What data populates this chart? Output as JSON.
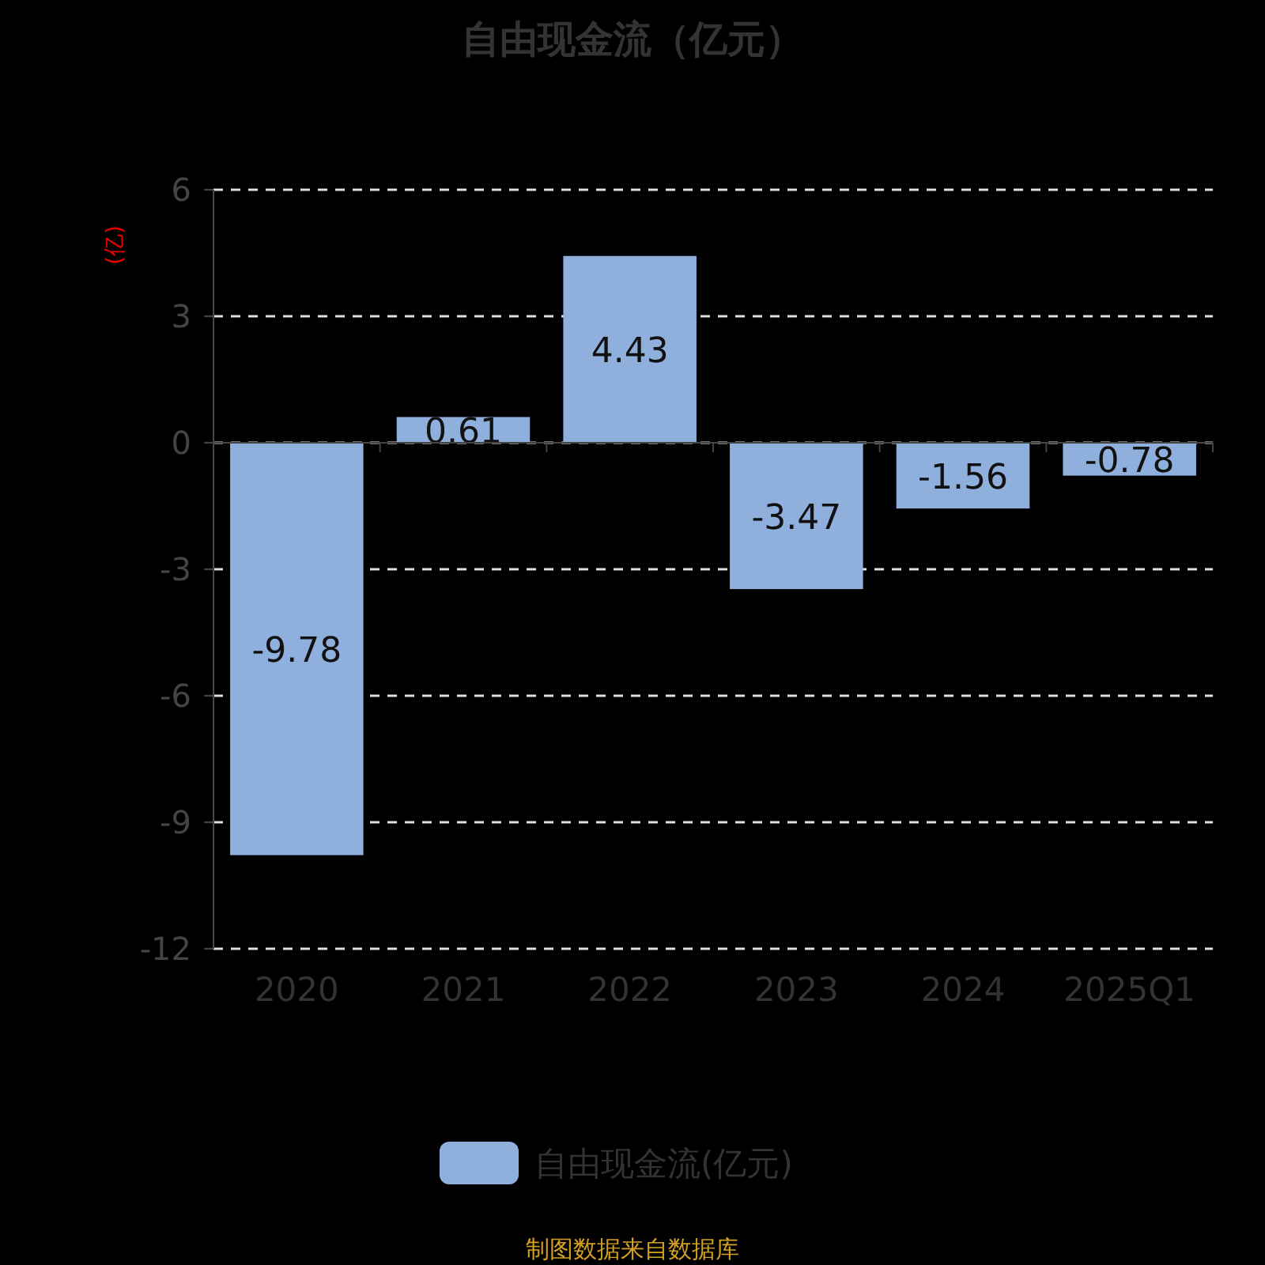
{
  "chart_data": {
    "type": "bar",
    "title": "自由现金流（亿元）",
    "ylabel": "(亿)",
    "categories": [
      "2020",
      "2021",
      "2022",
      "2023",
      "2024",
      "2025Q1"
    ],
    "series": [
      {
        "name": "自由现金流(亿元)",
        "color": "#8fb0dc",
        "values": [
          -9.78,
          0.61,
          4.43,
          -3.47,
          -1.56,
          -0.78
        ]
      }
    ],
    "ylim": [
      -12,
      6
    ],
    "yticks": [
      -12,
      -9,
      -6,
      -3,
      0,
      3,
      6
    ],
    "grid": "y",
    "legend": "bottom",
    "data_labels": true,
    "annotations": [
      "制图数据来自数据库"
    ]
  }
}
